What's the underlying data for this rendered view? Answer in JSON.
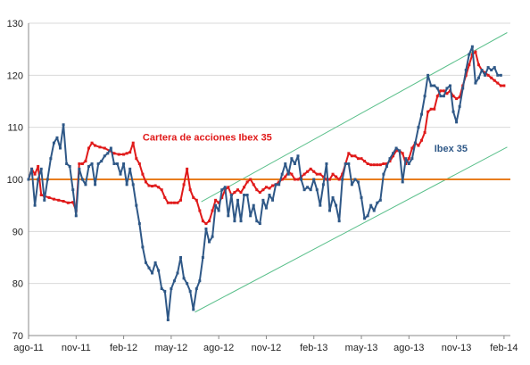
{
  "chart_data": {
    "type": "line",
    "title": "",
    "xlabel": "",
    "ylabel": "",
    "ylim": [
      70,
      130
    ],
    "yticks": [
      70,
      80,
      90,
      100,
      110,
      120,
      130
    ],
    "xticks": [
      {
        "label": "ago-11",
        "x": 0
      },
      {
        "label": "nov-11",
        "x": 3
      },
      {
        "label": "feb-12",
        "x": 6
      },
      {
        "label": "may-12",
        "x": 9
      },
      {
        "label": "ago-12",
        "x": 12
      },
      {
        "label": "nov-12",
        "x": 15
      },
      {
        "label": "feb-13",
        "x": 18
      },
      {
        "label": "may-13",
        "x": 21
      },
      {
        "label": "ago-13",
        "x": 24
      },
      {
        "label": "nov-13",
        "x": 27
      },
      {
        "label": "feb-14",
        "x": 30
      }
    ],
    "xlim": [
      0,
      30.4
    ],
    "grid": true,
    "reference_line": {
      "y": 100,
      "color": "#e87d1e"
    },
    "series": [
      {
        "name": "Cartera de acciones Ibex 35",
        "color": "#e01a1a",
        "points": [
          [
            0.0,
            100
          ],
          [
            0.2,
            102
          ],
          [
            0.4,
            101
          ],
          [
            0.6,
            102.5
          ],
          [
            0.8,
            97
          ],
          [
            1.0,
            96.8
          ],
          [
            1.3,
            96.5
          ],
          [
            1.6,
            96.2
          ],
          [
            1.9,
            96
          ],
          [
            2.2,
            95.8
          ],
          [
            2.5,
            95.5
          ],
          [
            2.8,
            95.6
          ],
          [
            3.0,
            94
          ],
          [
            3.2,
            103
          ],
          [
            3.4,
            103
          ],
          [
            3.6,
            103.5
          ],
          [
            3.8,
            106
          ],
          [
            4.0,
            107
          ],
          [
            4.2,
            106.5
          ],
          [
            4.5,
            106.2
          ],
          [
            4.8,
            106
          ],
          [
            5.1,
            105.5
          ],
          [
            5.4,
            105
          ],
          [
            5.7,
            104.8
          ],
          [
            6.0,
            104.8
          ],
          [
            6.2,
            105
          ],
          [
            6.4,
            105.2
          ],
          [
            6.6,
            107
          ],
          [
            6.8,
            104
          ],
          [
            7.0,
            103
          ],
          [
            7.2,
            101
          ],
          [
            7.4,
            99.5
          ],
          [
            7.6,
            98.8
          ],
          [
            7.8,
            98.7
          ],
          [
            8.0,
            98.8
          ],
          [
            8.2,
            98.5
          ],
          [
            8.4,
            98
          ],
          [
            8.6,
            96.5
          ],
          [
            8.8,
            95.5
          ],
          [
            9.0,
            95.5
          ],
          [
            9.2,
            95.5
          ],
          [
            9.4,
            95.5
          ],
          [
            9.6,
            96
          ],
          [
            9.8,
            99
          ],
          [
            10.0,
            102
          ],
          [
            10.2,
            98
          ],
          [
            10.4,
            96.5
          ],
          [
            10.6,
            96
          ],
          [
            10.8,
            94
          ],
          [
            11.0,
            92
          ],
          [
            11.2,
            91.5
          ],
          [
            11.4,
            92
          ],
          [
            11.6,
            94
          ],
          [
            11.8,
            96
          ],
          [
            12.0,
            95.5
          ],
          [
            12.2,
            96.5
          ],
          [
            12.4,
            98
          ],
          [
            12.6,
            98.5
          ],
          [
            12.8,
            97
          ],
          [
            13.0,
            97.5
          ],
          [
            13.2,
            98
          ],
          [
            13.4,
            97.5
          ],
          [
            13.6,
            98.5
          ],
          [
            13.8,
            99.5
          ],
          [
            14.0,
            100
          ],
          [
            14.2,
            99
          ],
          [
            14.4,
            98
          ],
          [
            14.6,
            97.5
          ],
          [
            14.8,
            98
          ],
          [
            15.0,
            98.5
          ],
          [
            15.2,
            98.3
          ],
          [
            15.4,
            98.8
          ],
          [
            15.6,
            99
          ],
          [
            15.8,
            99.5
          ],
          [
            16.0,
            100
          ],
          [
            16.2,
            100.5
          ],
          [
            16.4,
            101.5
          ],
          [
            16.6,
            101
          ],
          [
            16.8,
            100
          ],
          [
            17.0,
            100
          ],
          [
            17.2,
            100.5
          ],
          [
            17.4,
            101
          ],
          [
            17.6,
            101.5
          ],
          [
            17.8,
            102
          ],
          [
            18.0,
            101.5
          ],
          [
            18.2,
            101
          ],
          [
            18.4,
            101
          ],
          [
            18.6,
            100.5
          ],
          [
            18.8,
            100
          ],
          [
            19.0,
            100
          ],
          [
            19.2,
            101
          ],
          [
            19.4,
            100.5
          ],
          [
            19.6,
            100
          ],
          [
            19.8,
            101
          ],
          [
            20.0,
            103
          ],
          [
            20.2,
            105
          ],
          [
            20.4,
            104.5
          ],
          [
            20.6,
            104.5
          ],
          [
            20.8,
            104
          ],
          [
            21.0,
            104
          ],
          [
            21.2,
            103.5
          ],
          [
            21.4,
            103
          ],
          [
            21.6,
            102.8
          ],
          [
            21.8,
            102.8
          ],
          [
            22.0,
            102.8
          ],
          [
            22.2,
            102.8
          ],
          [
            22.4,
            103
          ],
          [
            22.6,
            103
          ],
          [
            22.8,
            103.5
          ],
          [
            23.0,
            104.5
          ],
          [
            23.2,
            105.5
          ],
          [
            23.4,
            105.5
          ],
          [
            23.6,
            105
          ],
          [
            23.8,
            103
          ],
          [
            24.0,
            104
          ],
          [
            24.2,
            106
          ],
          [
            24.4,
            107
          ],
          [
            24.6,
            106.5
          ],
          [
            24.8,
            107.5
          ],
          [
            25.0,
            109
          ],
          [
            25.2,
            113
          ],
          [
            25.4,
            113.5
          ],
          [
            25.6,
            113.5
          ],
          [
            25.8,
            116
          ],
          [
            26.0,
            117
          ],
          [
            26.2,
            117
          ],
          [
            26.4,
            116.5
          ],
          [
            26.6,
            117
          ],
          [
            26.8,
            116
          ],
          [
            27.0,
            115.5
          ],
          [
            27.2,
            115.8
          ],
          [
            27.4,
            118
          ],
          [
            27.6,
            120
          ],
          [
            27.8,
            122
          ],
          [
            28.0,
            124
          ],
          [
            28.2,
            124.5
          ],
          [
            28.4,
            122
          ],
          [
            28.6,
            121
          ],
          [
            28.8,
            120.5
          ],
          [
            29.0,
            120
          ],
          [
            29.2,
            119.5
          ],
          [
            29.4,
            119
          ],
          [
            29.6,
            118.5
          ],
          [
            29.8,
            118
          ],
          [
            30.0,
            118
          ]
        ]
      },
      {
        "name": "Ibex 35",
        "color": "#2f5887",
        "points": [
          [
            0.0,
            100
          ],
          [
            0.2,
            102
          ],
          [
            0.4,
            95
          ],
          [
            0.6,
            100
          ],
          [
            0.8,
            102
          ],
          [
            1.0,
            96
          ],
          [
            1.2,
            100
          ],
          [
            1.4,
            104
          ],
          [
            1.6,
            107
          ],
          [
            1.8,
            108
          ],
          [
            2.0,
            106
          ],
          [
            2.2,
            110.5
          ],
          [
            2.4,
            103
          ],
          [
            2.6,
            102.5
          ],
          [
            2.8,
            98
          ],
          [
            3.0,
            93
          ],
          [
            3.2,
            102
          ],
          [
            3.4,
            100
          ],
          [
            3.6,
            99
          ],
          [
            3.8,
            102.5
          ],
          [
            4.0,
            103
          ],
          [
            4.2,
            99
          ],
          [
            4.4,
            103
          ],
          [
            4.6,
            103.5
          ],
          [
            4.8,
            104.5
          ],
          [
            5.0,
            105
          ],
          [
            5.2,
            106
          ],
          [
            5.4,
            103
          ],
          [
            5.6,
            103
          ],
          [
            5.8,
            101
          ],
          [
            6.0,
            103
          ],
          [
            6.2,
            99
          ],
          [
            6.4,
            102
          ],
          [
            6.6,
            99
          ],
          [
            6.8,
            95
          ],
          [
            7.0,
            91.5
          ],
          [
            7.2,
            87
          ],
          [
            7.4,
            84
          ],
          [
            7.6,
            83
          ],
          [
            7.8,
            82
          ],
          [
            8.0,
            84
          ],
          [
            8.2,
            82.5
          ],
          [
            8.4,
            79
          ],
          [
            8.6,
            78.5
          ],
          [
            8.8,
            73
          ],
          [
            9.0,
            79
          ],
          [
            9.2,
            80.5
          ],
          [
            9.4,
            82
          ],
          [
            9.6,
            85
          ],
          [
            9.8,
            81
          ],
          [
            10.0,
            80
          ],
          [
            10.2,
            78.5
          ],
          [
            10.4,
            75
          ],
          [
            10.6,
            79
          ],
          [
            10.8,
            80.5
          ],
          [
            11.0,
            85
          ],
          [
            11.2,
            90.5
          ],
          [
            11.4,
            88
          ],
          [
            11.6,
            89
          ],
          [
            11.8,
            95
          ],
          [
            12.0,
            94
          ],
          [
            12.2,
            98
          ],
          [
            12.4,
            98.5
          ],
          [
            12.6,
            93
          ],
          [
            12.8,
            97
          ],
          [
            13.0,
            92
          ],
          [
            13.2,
            96
          ],
          [
            13.4,
            92
          ],
          [
            13.6,
            97
          ],
          [
            13.8,
            97
          ],
          [
            14.0,
            93
          ],
          [
            14.2,
            95
          ],
          [
            14.4,
            92
          ],
          [
            14.6,
            91.5
          ],
          [
            14.8,
            96
          ],
          [
            15.0,
            94.5
          ],
          [
            15.2,
            97
          ],
          [
            15.4,
            96
          ],
          [
            15.6,
            99
          ],
          [
            15.8,
            99
          ],
          [
            16.0,
            101
          ],
          [
            16.2,
            103
          ],
          [
            16.4,
            101
          ],
          [
            16.6,
            104
          ],
          [
            16.8,
            103
          ],
          [
            17.0,
            104.5
          ],
          [
            17.2,
            100
          ],
          [
            17.4,
            98
          ],
          [
            17.6,
            98.5
          ],
          [
            17.8,
            98
          ],
          [
            18.0,
            100
          ],
          [
            18.2,
            98
          ],
          [
            18.4,
            95
          ],
          [
            18.6,
            99
          ],
          [
            18.8,
            103
          ],
          [
            19.0,
            94
          ],
          [
            19.2,
            96.5
          ],
          [
            19.4,
            95
          ],
          [
            19.6,
            92
          ],
          [
            19.8,
            100
          ],
          [
            20.0,
            103
          ],
          [
            20.2,
            103
          ],
          [
            20.4,
            99
          ],
          [
            20.6,
            100
          ],
          [
            20.8,
            99.5
          ],
          [
            21.0,
            96.5
          ],
          [
            21.2,
            92.5
          ],
          [
            21.4,
            93
          ],
          [
            21.6,
            95
          ],
          [
            21.8,
            94
          ],
          [
            22.0,
            95.5
          ],
          [
            22.2,
            96
          ],
          [
            22.4,
            101
          ],
          [
            22.6,
            102.5
          ],
          [
            22.8,
            104
          ],
          [
            23.0,
            105
          ],
          [
            23.2,
            106
          ],
          [
            23.4,
            105.5
          ],
          [
            23.6,
            99.5
          ],
          [
            23.8,
            104
          ],
          [
            24.0,
            103
          ],
          [
            24.2,
            104
          ],
          [
            24.4,
            107
          ],
          [
            24.6,
            110
          ],
          [
            24.8,
            112.5
          ],
          [
            25.0,
            116
          ],
          [
            25.2,
            120
          ],
          [
            25.4,
            118
          ],
          [
            25.6,
            118
          ],
          [
            25.8,
            117.5
          ],
          [
            26.0,
            116
          ],
          [
            26.2,
            116
          ],
          [
            26.4,
            117.5
          ],
          [
            26.6,
            118
          ],
          [
            26.8,
            113
          ],
          [
            27.0,
            111
          ],
          [
            27.2,
            114
          ],
          [
            27.4,
            117.5
          ],
          [
            27.6,
            121
          ],
          [
            27.8,
            124
          ],
          [
            28.0,
            125.5
          ],
          [
            28.2,
            118.5
          ],
          [
            28.4,
            119.5
          ],
          [
            28.6,
            121
          ],
          [
            28.8,
            120
          ],
          [
            29.0,
            121.5
          ],
          [
            29.2,
            121
          ],
          [
            29.4,
            121.5
          ],
          [
            29.6,
            120
          ],
          [
            29.8,
            120
          ]
        ]
      }
    ],
    "trend_channel": {
      "color": "#5cc08c",
      "lines": [
        {
          "x": [
            10.9,
            30.2
          ],
          "y": [
            95.7,
            128.2
          ]
        },
        {
          "x": [
            10.5,
            30.2
          ],
          "y": [
            74.5,
            106.2
          ]
        }
      ]
    },
    "annotations": [
      {
        "text": "Cartera de acciones Ibex 35",
        "x": 7.2,
        "y": 107.5,
        "color": "#e01a1a"
      },
      {
        "text": "Ibex 35",
        "x": 25.6,
        "y": 105.3,
        "color": "#2f5887"
      }
    ]
  }
}
